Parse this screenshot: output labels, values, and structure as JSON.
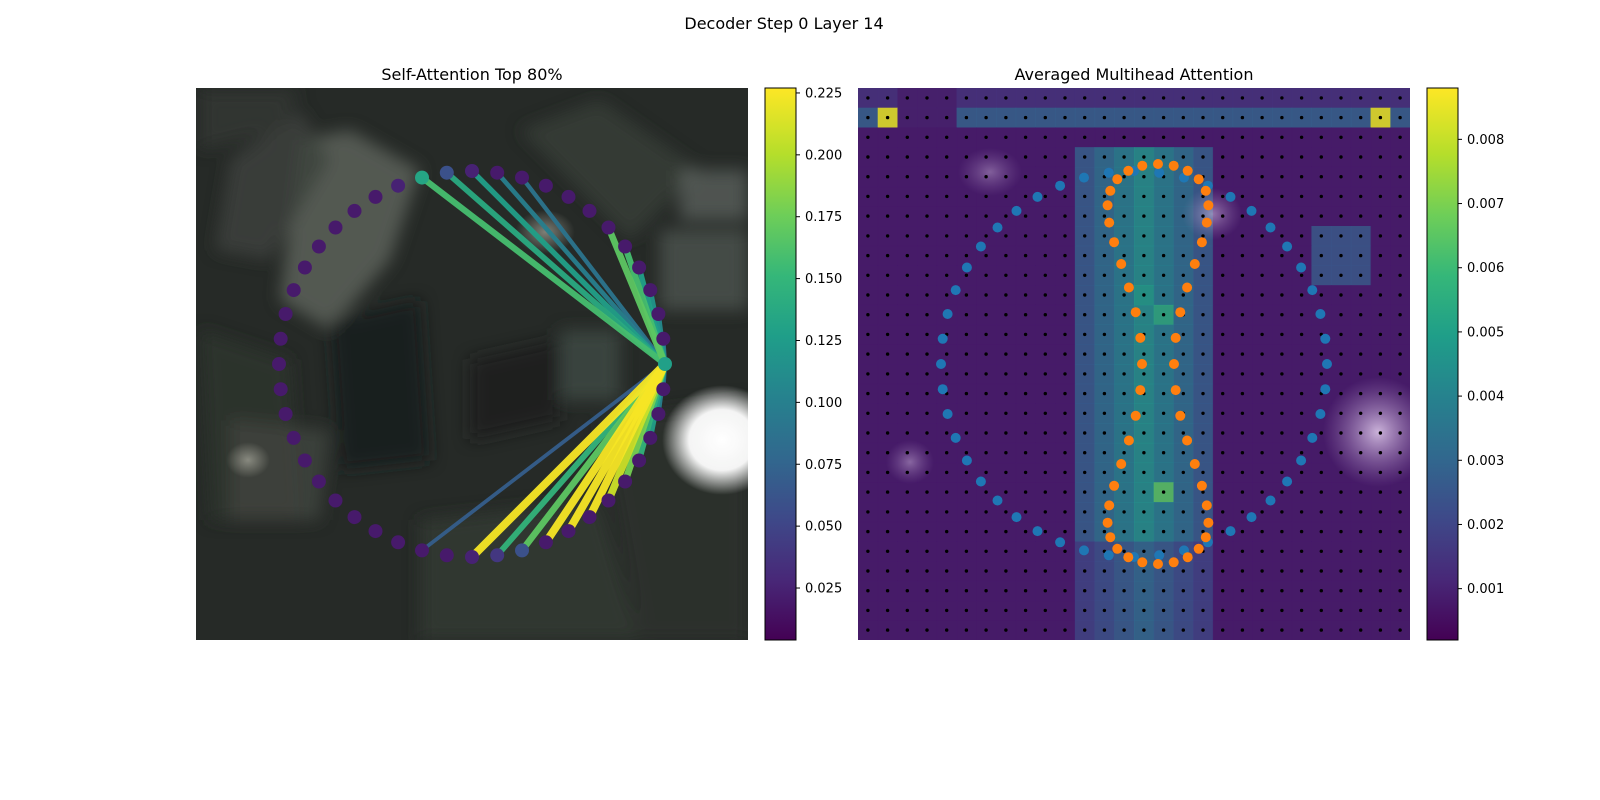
{
  "figure": {
    "suptitle": "Decoder Step 0 Layer 14"
  },
  "colors": {
    "viridis": [
      "#440154",
      "#482878",
      "#3e4989",
      "#31688e",
      "#26828e",
      "#1f9e89",
      "#35b779",
      "#6ece58",
      "#b5de2b",
      "#fde725"
    ],
    "blue_points": "#1f77b4",
    "orange_points": "#ff7f0e",
    "grid_dots": "#000000"
  },
  "chart_data": [
    {
      "type": "network",
      "title": "Self-Attention Top 80%",
      "description_of_nodes": "48 points evenly spaced on a circle, point 0 at the right (3 o'clock)",
      "node_count": 48,
      "query_node": 0,
      "node_values": [
        0.13,
        0.02,
        0.02,
        0.02,
        0.02,
        0.02,
        0.02,
        0.02,
        0.02,
        0.02,
        0.02,
        0.02,
        0.025,
        0.06,
        0.135,
        0.025,
        0.02,
        0.02,
        0.02,
        0.02,
        0.02,
        0.02,
        0.02,
        0.02,
        0.02,
        0.02,
        0.02,
        0.02,
        0.02,
        0.02,
        0.02,
        0.02,
        0.02,
        0.02,
        0.02,
        0.02,
        0.025,
        0.04,
        0.06,
        0.02,
        0.02,
        0.02,
        0.02,
        0.02,
        0.02,
        0.02,
        0.02,
        0.02
      ],
      "edges": [
        {
          "target": 1,
          "value": 0.09
        },
        {
          "target": 2,
          "value": 0.11
        },
        {
          "target": 3,
          "value": 0.12
        },
        {
          "target": 4,
          "value": 0.13
        },
        {
          "target": 5,
          "value": 0.16
        },
        {
          "target": 6,
          "value": 0.17
        },
        {
          "target": 14,
          "value": 0.16
        },
        {
          "target": 13,
          "value": 0.14
        },
        {
          "target": 12,
          "value": 0.13
        },
        {
          "target": 11,
          "value": 0.1
        },
        {
          "target": 10,
          "value": 0.09
        },
        {
          "target": 47,
          "value": 0.09
        },
        {
          "target": 46,
          "value": 0.1
        },
        {
          "target": 45,
          "value": 0.13
        },
        {
          "target": 44,
          "value": 0.15
        },
        {
          "target": 43,
          "value": 0.18
        },
        {
          "target": 42,
          "value": 0.21
        },
        {
          "target": 41,
          "value": 0.225
        },
        {
          "target": 40,
          "value": 0.225
        },
        {
          "target": 39,
          "value": 0.225
        },
        {
          "target": 38,
          "value": 0.17
        },
        {
          "target": 37,
          "value": 0.15
        },
        {
          "target": 36,
          "value": 0.225
        },
        {
          "target": 34,
          "value": 0.07
        }
      ],
      "colorbar": {
        "range": [
          0.004,
          0.227
        ],
        "ticks": [
          "0.025",
          "0.050",
          "0.075",
          "0.100",
          "0.125",
          "0.150",
          "0.175",
          "0.200",
          "0.225"
        ]
      }
    },
    {
      "type": "heatmap",
      "title": "Averaged Multihead Attention",
      "grid_size": 28,
      "highlights": [
        {
          "row": 1,
          "col": 1,
          "value": 0.0085
        },
        {
          "row": 1,
          "col": 26,
          "value": 0.0085
        },
        {
          "row": 20,
          "col": 15,
          "value": 0.0065
        },
        {
          "row": 11,
          "col": 15,
          "value": 0.0055
        },
        {
          "row": 10,
          "col": 14,
          "value": 0.005
        }
      ],
      "series": [
        {
          "name": "",
          "color": "blue",
          "shape": "circle",
          "count": 48
        },
        {
          "name": "",
          "color": "orange",
          "shape": "s-curve",
          "count": 48
        }
      ],
      "colorbar": {
        "range": [
          0.0002,
          0.0088
        ],
        "ticks": [
          "0.001",
          "0.002",
          "0.003",
          "0.004",
          "0.005",
          "0.006",
          "0.007",
          "0.008"
        ]
      }
    }
  ]
}
